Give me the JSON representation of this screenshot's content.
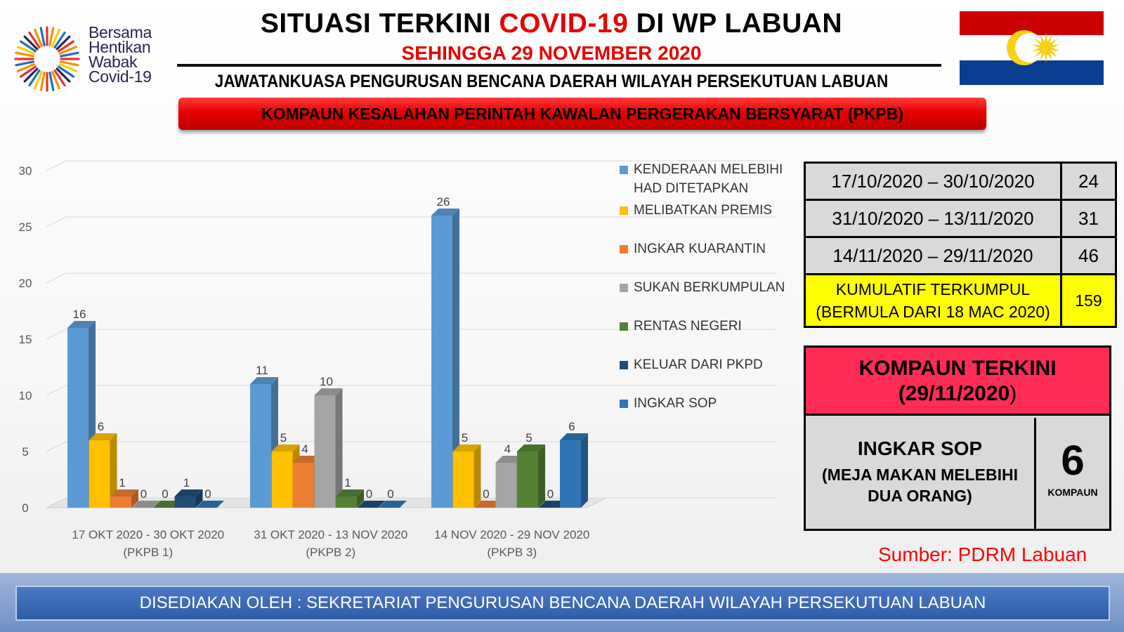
{
  "header": {
    "logo_lines": [
      "Bersama",
      "Hentikan",
      "Wabak",
      "Covid-19"
    ],
    "title_part1": "SITUASI TERKINI ",
    "title_highlight": "COVID-19",
    "title_part2": " DI WP LABUAN",
    "subtitle": "SEHINGGA 29 NOVEMBER 2020",
    "organization": "JAWATANKUASA PENGURUSAN BENCANA DAERAH WILAYAH PERSEKUTUAN  LABUAN",
    "banner": "KOMPAUN KESALAHAN PERINTAH KAWALAN PERGERAKAN BERSYARAT (PKPB)"
  },
  "chart_data": {
    "type": "bar",
    "categories": [
      [
        "17 OKT 2020 - 30 OKT 2020",
        "(PKPB 1)"
      ],
      [
        "31 OKT 2020 - 13 NOV 2020",
        "(PKPB 2)"
      ],
      [
        "14 NOV 2020 - 29 NOV 2020",
        "(PKPB 3)"
      ]
    ],
    "series": [
      {
        "name": "KENDERAAN MELEBIHI HAD DITETAPKAN",
        "legend_lines": [
          "KENDERAAN MELEBIHI",
          "HAD DITETAPKAN"
        ],
        "color": "#5b9bd5",
        "values": [
          16,
          11,
          26
        ]
      },
      {
        "name": "MELIBATKAN PREMIS",
        "legend_lines": [
          "MELIBATKAN PREMIS"
        ],
        "color": "#ffc000",
        "values": [
          6,
          5,
          5
        ]
      },
      {
        "name": "INGKAR KUARANTIN",
        "legend_lines": [
          "INGKAR KUARANTIN"
        ],
        "color": "#ed7d31",
        "values": [
          1,
          4,
          0
        ]
      },
      {
        "name": "SUKAN BERKUMPULAN",
        "legend_lines": [
          "SUKAN BERKUMPULAN"
        ],
        "color": "#a5a5a5",
        "values": [
          0,
          10,
          4
        ]
      },
      {
        "name": "RENTAS NEGERI",
        "legend_lines": [
          "RENTAS NEGERI"
        ],
        "color": "#548235",
        "values": [
          0,
          1,
          5
        ]
      },
      {
        "name": "KELUAR DARI PKPD",
        "legend_lines": [
          "KELUAR DARI PKPD"
        ],
        "color": "#1f4e79",
        "values": [
          1,
          0,
          0
        ]
      },
      {
        "name": "INGKAR SOP",
        "legend_lines": [
          "INGKAR SOP"
        ],
        "color": "#2e75b6",
        "values": [
          0,
          0,
          6
        ]
      }
    ],
    "ylim": [
      0,
      30
    ],
    "yticks": [
      0,
      5,
      10,
      15,
      20,
      25,
      30
    ],
    "grid": true,
    "legend_position": "right"
  },
  "stats": {
    "periods": [
      {
        "range": "17/10/2020 – 30/10/2020",
        "count": "24"
      },
      {
        "range": "31/10/2020 – 13/11/2020",
        "count": "31"
      },
      {
        "range": "14/11/2020 – 29/11/2020",
        "count": "46"
      }
    ],
    "cumulative_line1": "KUMULATIF TERKUMPUL",
    "cumulative_line2": "(BERMULA DARI 18 MAC 2020)",
    "cumulative_count": "159"
  },
  "latest": {
    "heading_line1": "KOMPAUN TERKINI",
    "heading_line2": "(29/11/2020",
    "heading_close": ")",
    "label": "INGKAR SOP",
    "note_line1": "(MEJA MAKAN MELEBIHI",
    "note_line2": "DUA ORANG)",
    "value": "6",
    "unit": "KOMPAUN"
  },
  "source": "Sumber: PDRM Labuan",
  "footer": "DISEDIAKAN OLEH : SEKRETARIAT PENGURUSAN BENCANA DAERAH WILAYAH PERSEKUTUAN LABUAN",
  "colors": {
    "accent_red": "#e60000",
    "banner_red": "#e60000",
    "highlight_yellow": "#ffff00",
    "latest_header": "#ff2d55",
    "footer_blue": "#2f5da8",
    "flag_red": "#cc0000",
    "flag_blue": "#0b3d91",
    "flag_yellow": "#f7d117"
  }
}
